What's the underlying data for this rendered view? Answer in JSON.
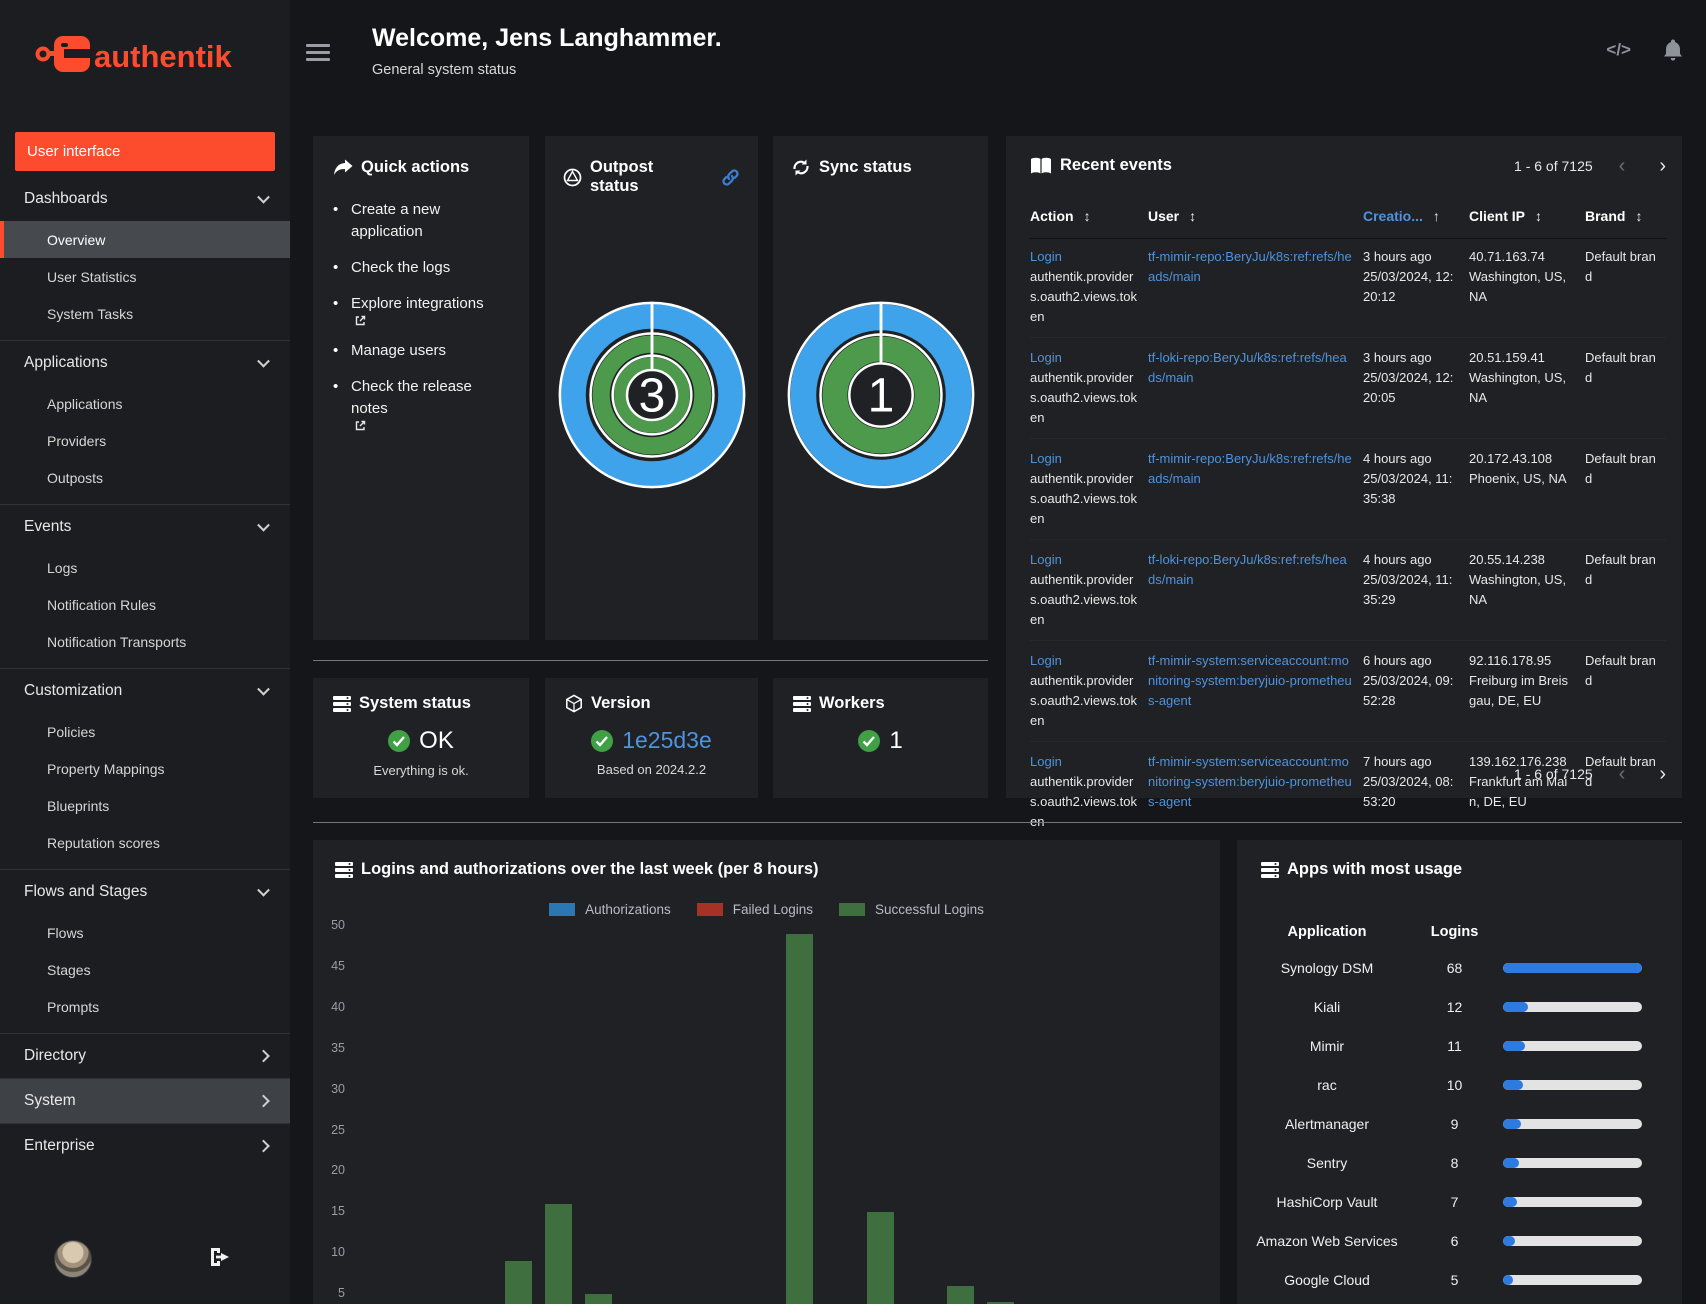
{
  "brand": {
    "name": "authentik",
    "accent": "#fd4b2d"
  },
  "topbar": {
    "code_glyph": "</>"
  },
  "header": {
    "title": "Welcome, Jens Langhammer.",
    "subtitle": "General system status"
  },
  "sidebar": {
    "user_interface_label": "User interface",
    "groups": [
      {
        "label": "Dashboards",
        "state": "expanded",
        "items": [
          {
            "label": "Overview",
            "selected": true
          },
          {
            "label": "User Statistics"
          },
          {
            "label": "System Tasks"
          }
        ]
      },
      {
        "label": "Applications",
        "state": "expanded",
        "items": [
          {
            "label": "Applications"
          },
          {
            "label": "Providers"
          },
          {
            "label": "Outposts"
          }
        ]
      },
      {
        "label": "Events",
        "state": "expanded",
        "items": [
          {
            "label": "Logs"
          },
          {
            "label": "Notification Rules"
          },
          {
            "label": "Notification Transports"
          }
        ]
      },
      {
        "label": "Customization",
        "state": "expanded",
        "items": [
          {
            "label": "Policies"
          },
          {
            "label": "Property Mappings"
          },
          {
            "label": "Blueprints"
          },
          {
            "label": "Reputation scores"
          }
        ]
      },
      {
        "label": "Flows and Stages",
        "state": "expanded",
        "items": [
          {
            "label": "Flows"
          },
          {
            "label": "Stages"
          },
          {
            "label": "Prompts"
          }
        ]
      },
      {
        "label": "Directory",
        "state": "collapsed",
        "items": []
      },
      {
        "label": "System",
        "state": "collapsed",
        "highlighted": true,
        "items": []
      },
      {
        "label": "Enterprise",
        "state": "collapsed",
        "items": []
      }
    ]
  },
  "quick_actions": {
    "title": "Quick actions",
    "items": [
      {
        "label": "Create a new application",
        "external": false
      },
      {
        "label": "Check the logs",
        "external": false
      },
      {
        "label": "Explore integrations",
        "external": true
      },
      {
        "label": "Manage users",
        "external": false
      },
      {
        "label": "Check the release notes",
        "external": true
      }
    ]
  },
  "outpost_status": {
    "title": "Outpost status",
    "value": "3",
    "rings": [
      {
        "color": "#3fa3eb"
      },
      {
        "color": "#4d9a4d"
      },
      {
        "color": "#4d9a4d"
      }
    ]
  },
  "sync_status": {
    "title": "Sync status",
    "value": "1",
    "rings": [
      {
        "color": "#3fa3eb"
      },
      {
        "color": "#4d9a4d"
      }
    ]
  },
  "recent_events": {
    "title": "Recent events",
    "pagination": "1 - 6 of 7125",
    "columns": [
      {
        "label": "Action",
        "display": "Action",
        "sort": "both",
        "active": false
      },
      {
        "label": "User",
        "display": "User",
        "sort": "both",
        "active": false
      },
      {
        "label": "Creation Date",
        "display": "Creatio...",
        "sort": "asc",
        "active": true
      },
      {
        "label": "Client IP",
        "display": "Client IP",
        "sort": "both",
        "active": false
      },
      {
        "label": "Brand",
        "display": "Brand",
        "sort": "both",
        "active": false
      }
    ],
    "rows": [
      {
        "action": "Login",
        "action_app": "authentik.providers.oauth2.views.token",
        "user": "tf-mimir-repo:BeryJu/k8s:ref:refs/heads/main",
        "relative_time": "3 hours ago",
        "timestamp": "25/03/2024, 12:20:12",
        "client_ip": "40.71.163.74",
        "location": "Washington, US, NA",
        "brand": "Default brand"
      },
      {
        "action": "Login",
        "action_app": "authentik.providers.oauth2.views.token",
        "user": "tf-loki-repo:BeryJu/k8s:ref:refs/heads/main",
        "relative_time": "3 hours ago",
        "timestamp": "25/03/2024, 12:20:05",
        "client_ip": "20.51.159.41",
        "location": "Washington, US, NA",
        "brand": "Default brand"
      },
      {
        "action": "Login",
        "action_app": "authentik.providers.oauth2.views.token",
        "user": "tf-mimir-repo:BeryJu/k8s:ref:refs/heads/main",
        "relative_time": "4 hours ago",
        "timestamp": "25/03/2024, 11:35:38",
        "client_ip": "20.172.43.108",
        "location": "Phoenix, US, NA",
        "brand": "Default brand"
      },
      {
        "action": "Login",
        "action_app": "authentik.providers.oauth2.views.token",
        "user": "tf-loki-repo:BeryJu/k8s:ref:refs/heads/main",
        "relative_time": "4 hours ago",
        "timestamp": "25/03/2024, 11:35:29",
        "client_ip": "20.55.14.238",
        "location": "Washington, US, NA",
        "brand": "Default brand"
      },
      {
        "action": "Login",
        "action_app": "authentik.providers.oauth2.views.token",
        "user": "tf-mimir-system:serviceaccount:monitoring-system:beryjuio-prometheus-agent",
        "relative_time": "6 hours ago",
        "timestamp": "25/03/2024, 09:52:28",
        "client_ip": "92.116.178.95",
        "location": "Freiburg im Breisgau, DE, EU",
        "brand": "Default brand"
      },
      {
        "action": "Login",
        "action_app": "authentik.providers.oauth2.views.token",
        "user": "tf-mimir-system:serviceaccount:monitoring-system:beryjuio-prometheus-agent",
        "relative_time": "7 hours ago",
        "timestamp": "25/03/2024, 08:53:20",
        "client_ip": "139.162.176.238",
        "location": "Frankfurt am Main, DE, EU",
        "brand": "Default brand"
      }
    ]
  },
  "system_status": {
    "title": "System status",
    "value": "OK",
    "detail": "Everything is ok."
  },
  "version": {
    "title": "Version",
    "value": "1e25d3e",
    "detail": "Based on 2024.2.2"
  },
  "workers": {
    "title": "Workers",
    "value": "1"
  },
  "chart_data": {
    "type": "bar",
    "title": "Logins and authorizations over the last week (per 8 hours)",
    "xlabel": "",
    "ylabel": "",
    "ylim": [
      0,
      50
    ],
    "yticks": [
      50,
      45,
      40,
      35,
      30,
      25,
      20,
      15,
      10,
      5
    ],
    "grid": false,
    "legend_position": "top",
    "series": [
      {
        "name": "Authorizations",
        "color": "#2b77b3",
        "bars": []
      },
      {
        "name": "Failed Logins",
        "color": "#a63225",
        "bars": []
      },
      {
        "name": "Successful Logins",
        "color": "#3f6e3f",
        "bars": [
          {
            "slot": 0,
            "value": 9
          },
          {
            "slot": 1,
            "value": 16
          },
          {
            "slot": 2,
            "value": 5
          },
          {
            "slot": 7,
            "value": 49
          },
          {
            "slot": 9,
            "value": 15
          },
          {
            "slot": 11,
            "value": 6
          },
          {
            "slot": 12,
            "value": 4
          }
        ]
      }
    ]
  },
  "apps_usage": {
    "title": "Apps with most usage",
    "columns": [
      "Application",
      "Logins"
    ],
    "max_logins": 68,
    "rows": [
      {
        "application": "Synology DSM",
        "logins": 68
      },
      {
        "application": "Kiali",
        "logins": 12
      },
      {
        "application": "Mimir",
        "logins": 11
      },
      {
        "application": "rac",
        "logins": 10
      },
      {
        "application": "Alertmanager",
        "logins": 9
      },
      {
        "application": "Sentry",
        "logins": 8
      },
      {
        "application": "HashiCorp Vault",
        "logins": 7
      },
      {
        "application": "Amazon Web Services",
        "logins": 6
      },
      {
        "application": "Google Cloud",
        "logins": 5
      }
    ]
  },
  "colors": {
    "accent": "#fd4b2d",
    "link": "#4f93dd",
    "donut_blue": "#3fa3eb",
    "donut_green": "#4d9a4d",
    "success": "#3fa045",
    "bar_green": "#3f6e3f",
    "progress_fill": "#2d7be0",
    "progress_track": "#e3e3e3"
  }
}
